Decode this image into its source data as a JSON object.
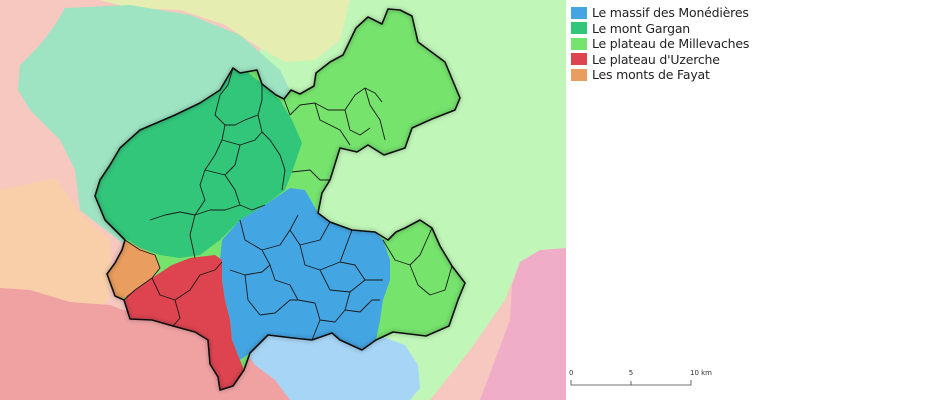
{
  "legend": {
    "items": [
      {
        "label": "Le massif des Monédières",
        "color": "#44a5e3"
      },
      {
        "label": "Le mont Gargan",
        "color": "#31c67a"
      },
      {
        "label": "Le plateau de Millevaches",
        "color": "#76e36d"
      },
      {
        "label": "Le plateau d'Uzerche",
        "color": "#dd4450"
      },
      {
        "label": "Les monts de Fayat",
        "color": "#e99d5e"
      }
    ]
  },
  "background_colors": {
    "gargan_light": "#9ee4c3",
    "millevaches_light": "#c0f7b8",
    "uzerche_light": "#f0a2a3",
    "fayat_light": "#f8cfa8",
    "monedieres_light": "#a7d5f5",
    "pink": "#f0adc8",
    "yellow": "#e5edb0",
    "salmon": "#f6c8c0"
  },
  "scale": {
    "ticks": [
      "0",
      "5",
      "10 km"
    ]
  }
}
